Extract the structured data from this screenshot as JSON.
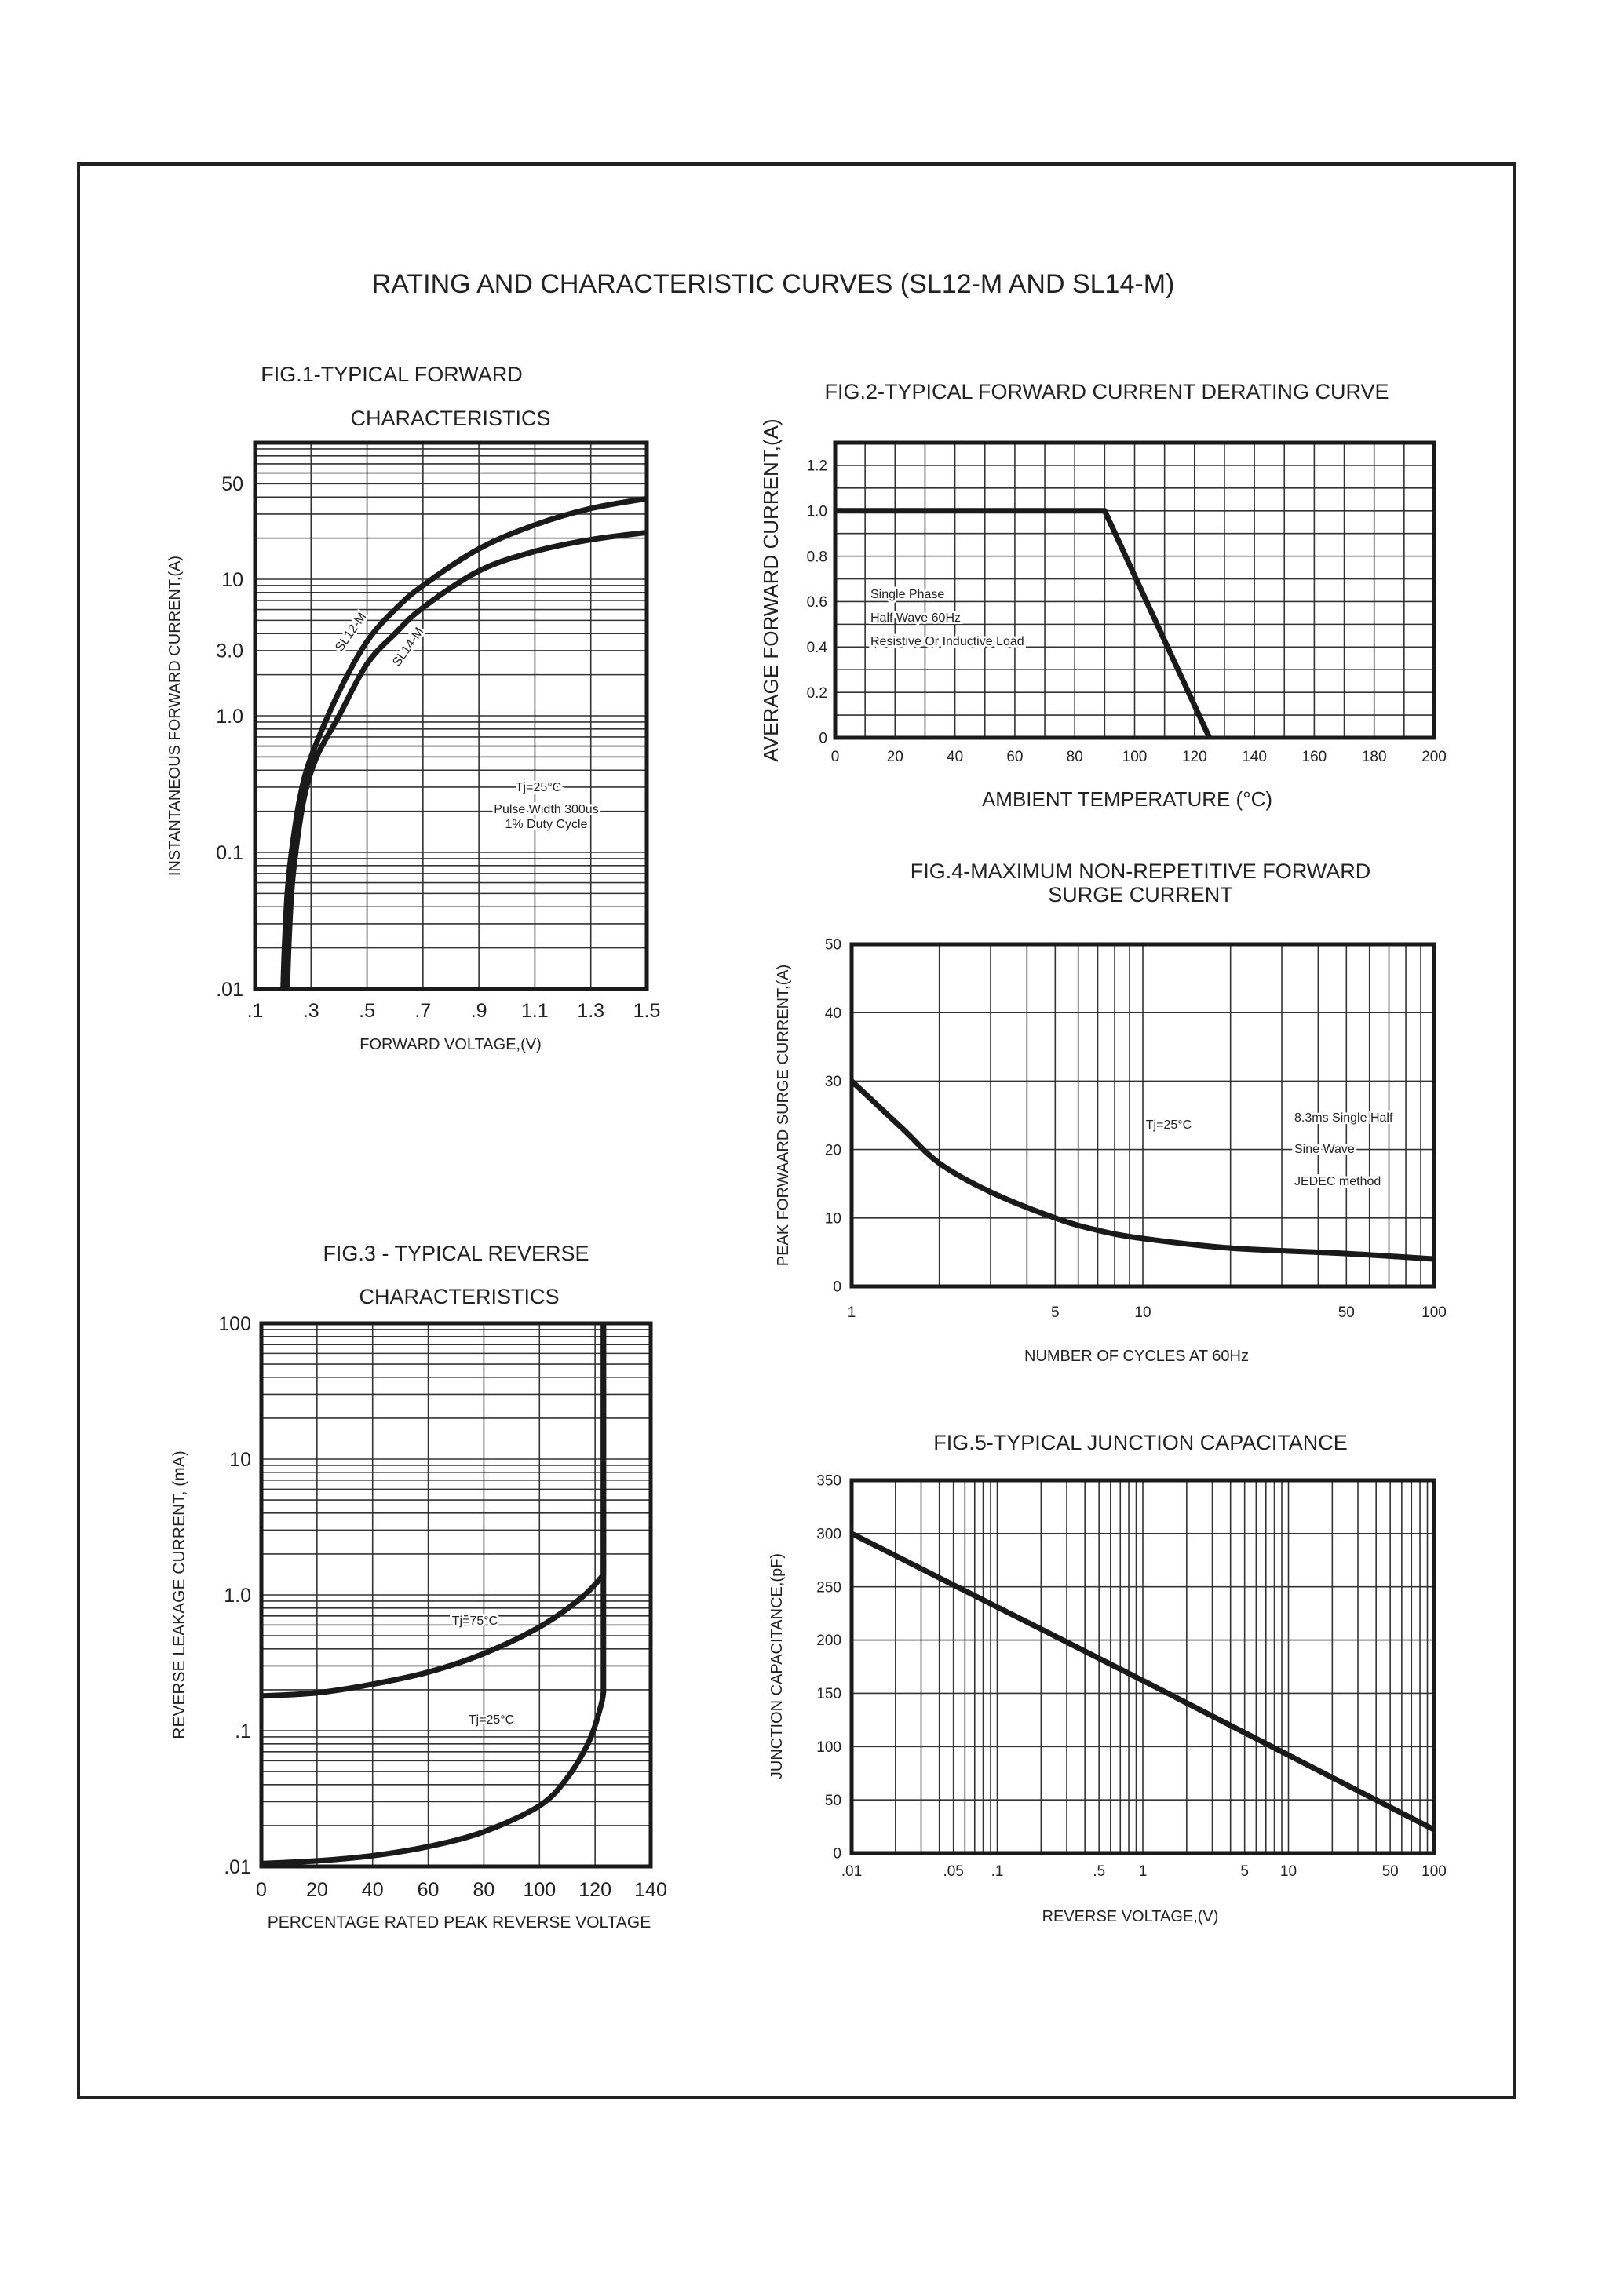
{
  "page": {
    "title": "RATING AND CHARACTERISTIC CURVES (SL12-M  AND  SL14-M)"
  },
  "chart_data": [
    {
      "type": "line",
      "title": [
        "FIG.1-TYPICAL FORWARD",
        "CHARACTERISTICS"
      ],
      "xlabel": "FORWARD VOLTAGE,(V)",
      "ylabel": "INSTANTANEOUS FORWARD CURRENT,(A)",
      "xscale": "linear",
      "yscale": "log",
      "xlim": [
        0.1,
        1.5
      ],
      "ylim": [
        0.01,
        100
      ],
      "grid": true,
      "x_grid_step": 0.2,
      "xticks": [
        {
          "value": 0.1,
          "label": ".1"
        },
        {
          "value": 0.3,
          "label": ".3"
        },
        {
          "value": 0.5,
          "label": ".5"
        },
        {
          "value": 0.7,
          "label": ".7"
        },
        {
          "value": 0.9,
          "label": ".9"
        },
        {
          "value": 1.1,
          "label": "1.1"
        },
        {
          "value": 1.3,
          "label": "1.3"
        },
        {
          "value": 1.5,
          "label": "1.5"
        }
      ],
      "yticks": [
        {
          "value": 50,
          "label": "50"
        },
        {
          "value": 10,
          "label": "10"
        },
        {
          "value": 3,
          "label": "3.0"
        },
        {
          "value": 1,
          "label": "1.0"
        },
        {
          "value": 0.1,
          "label": "0.1"
        },
        {
          "value": 0.01,
          "label": ".01"
        }
      ],
      "series": [
        {
          "name": "SL12-M",
          "points": [
            [
              0.2,
              0.01
            ],
            [
              0.205,
              0.02
            ],
            [
              0.215,
              0.05
            ],
            [
              0.23,
              0.1
            ],
            [
              0.26,
              0.25
            ],
            [
              0.3,
              0.5
            ],
            [
              0.4,
              1.5
            ],
            [
              0.5,
              3.5
            ],
            [
              0.6,
              6
            ],
            [
              0.7,
              9
            ],
            [
              0.9,
              16.7
            ],
            [
              1.1,
              25
            ],
            [
              1.3,
              33
            ],
            [
              1.5,
              39
            ]
          ]
        },
        {
          "name": "SL14-M",
          "points": [
            [
              0.215,
              0.01
            ],
            [
              0.22,
              0.02
            ],
            [
              0.23,
              0.05
            ],
            [
              0.245,
              0.1
            ],
            [
              0.275,
              0.25
            ],
            [
              0.32,
              0.5
            ],
            [
              0.4,
              1.0
            ],
            [
              0.5,
              2.4
            ],
            [
              0.6,
              4
            ],
            [
              0.7,
              6.2
            ],
            [
              0.9,
              11.5
            ],
            [
              1.1,
              16
            ],
            [
              1.3,
              19.5
            ],
            [
              1.5,
              22
            ]
          ]
        }
      ],
      "annotations": [
        "Tj=25°C",
        "Pulse Width 300us",
        "1% Duty Cycle"
      ]
    },
    {
      "type": "line",
      "title": [
        "FIG.2-TYPICAL FORWARD CURRENT DERATING CURVE"
      ],
      "xlabel": "AMBIENT TEMPERATURE (°C)",
      "ylabel": "AVERAGE FORWARD CURRENT,(A)",
      "xscale": "linear",
      "yscale": "linear",
      "xlim": [
        0,
        200
      ],
      "ylim": [
        0,
        1.3
      ],
      "grid": true,
      "x_grid_step": 10,
      "y_grid_step": 0.1,
      "xticks": [
        {
          "value": 0,
          "label": "0"
        },
        {
          "value": 20,
          "label": "20"
        },
        {
          "value": 40,
          "label": "40"
        },
        {
          "value": 60,
          "label": "60"
        },
        {
          "value": 80,
          "label": "80"
        },
        {
          "value": 100,
          "label": "100"
        },
        {
          "value": 120,
          "label": "120"
        },
        {
          "value": 140,
          "label": "140"
        },
        {
          "value": 160,
          "label": "160"
        },
        {
          "value": 180,
          "label": "180"
        },
        {
          "value": 200,
          "label": "200"
        }
      ],
      "yticks": [
        {
          "value": 0,
          "label": "0"
        },
        {
          "value": 0.2,
          "label": "0.2"
        },
        {
          "value": 0.4,
          "label": "0.4"
        },
        {
          "value": 0.6,
          "label": "0.6"
        },
        {
          "value": 0.8,
          "label": "0.8"
        },
        {
          "value": 1.0,
          "label": "1.0"
        },
        {
          "value": 1.2,
          "label": "1.2"
        }
      ],
      "series": [
        {
          "points": [
            [
              0,
              1.0
            ],
            [
              90,
              1.0
            ],
            [
              125,
              0
            ]
          ]
        }
      ],
      "annotations": [
        "Single Phase",
        "Half Wave 60Hz",
        "Resistive Or Inductive Load"
      ]
    },
    {
      "type": "line",
      "title": [
        "FIG.3 - TYPICAL REVERSE",
        "CHARACTERISTICS"
      ],
      "xlabel": "PERCENTAGE RATED PEAK REVERSE VOLTAGE",
      "ylabel": "REVERSE LEAKAGE CURRENT, (mA)",
      "xscale": "linear",
      "yscale": "log",
      "xlim": [
        0,
        140
      ],
      "ylim": [
        0.01,
        100
      ],
      "grid": true,
      "x_grid_step": 20,
      "xticks": [
        {
          "value": 0,
          "label": "0"
        },
        {
          "value": 20,
          "label": "20"
        },
        {
          "value": 40,
          "label": "40"
        },
        {
          "value": 60,
          "label": "60"
        },
        {
          "value": 80,
          "label": "80"
        },
        {
          "value": 100,
          "label": "100"
        },
        {
          "value": 120,
          "label": "120"
        },
        {
          "value": 140,
          "label": "140"
        }
      ],
      "yticks": [
        {
          "value": 100,
          "label": "100"
        },
        {
          "value": 10,
          "label": "10"
        },
        {
          "value": 1,
          "label": "1.0"
        },
        {
          "value": 0.1,
          "label": ".1"
        },
        {
          "value": 0.01,
          "label": ".01"
        }
      ],
      "series": [
        {
          "name": "Tj=75°C",
          "points": [
            [
              0,
              0.18
            ],
            [
              20,
              0.19
            ],
            [
              40,
              0.22
            ],
            [
              60,
              0.27
            ],
            [
              80,
              0.37
            ],
            [
              100,
              0.58
            ],
            [
              115,
              0.95
            ],
            [
              123,
              1.4
            ],
            [
              123,
              100
            ]
          ]
        },
        {
          "name": "Tj=25°C",
          "points": [
            [
              0,
              0.0105
            ],
            [
              20,
              0.011
            ],
            [
              40,
              0.012
            ],
            [
              60,
              0.014
            ],
            [
              80,
              0.018
            ],
            [
              100,
              0.028
            ],
            [
              110,
              0.045
            ],
            [
              118,
              0.085
            ],
            [
              122,
              0.15
            ],
            [
              123,
              0.19
            ],
            [
              123,
              100
            ]
          ]
        }
      ],
      "annotations": []
    },
    {
      "type": "line",
      "title": [
        "FIG.4-MAXIMUM NON-REPETITIVE FORWARD",
        "SURGE CURRENT"
      ],
      "xlabel": "NUMBER OF CYCLES AT 60Hz",
      "ylabel": "PEAK FORWAARD SURGE CURRENT,(A)",
      "xscale": "log",
      "yscale": "linear",
      "xlim": [
        1,
        100
      ],
      "ylim": [
        0,
        50
      ],
      "grid": true,
      "y_grid_step": 10,
      "xticks": [
        {
          "value": 1,
          "label": "1"
        },
        {
          "value": 5,
          "label": "5"
        },
        {
          "value": 10,
          "label": "10"
        },
        {
          "value": 50,
          "label": "50"
        },
        {
          "value": 100,
          "label": "100"
        }
      ],
      "yticks": [
        {
          "value": 0,
          "label": "0"
        },
        {
          "value": 10,
          "label": "10"
        },
        {
          "value": 20,
          "label": "20"
        },
        {
          "value": 30,
          "label": "30"
        },
        {
          "value": 40,
          "label": "40"
        },
        {
          "value": 50,
          "label": "50"
        }
      ],
      "series": [
        {
          "points": [
            [
              1,
              30
            ],
            [
              1.5,
              23
            ],
            [
              2,
              18
            ],
            [
              3,
              13.8
            ],
            [
              5,
              10
            ],
            [
              7,
              8.2
            ],
            [
              10,
              7
            ],
            [
              20,
              5.6
            ],
            [
              50,
              4.8
            ],
            [
              100,
              4
            ]
          ]
        }
      ],
      "annotations": [
        "Tj=25°C",
        "8.3ms Single Half",
        "Sine Wave",
        "JEDEC method"
      ]
    },
    {
      "type": "line",
      "title": [
        "FIG.5-TYPICAL JUNCTION CAPACITANCE"
      ],
      "xlabel": "REVERSE VOLTAGE,(V)",
      "ylabel": "JUNCTION CAPACITANCE,(pF)",
      "xscale": "log",
      "yscale": "linear",
      "xlim": [
        0.01,
        100
      ],
      "ylim": [
        0,
        350
      ],
      "grid": true,
      "y_grid_step": 50,
      "xticks": [
        {
          "value": 0.01,
          "label": ".01"
        },
        {
          "value": 0.05,
          "label": ".05"
        },
        {
          "value": 0.1,
          "label": ".1"
        },
        {
          "value": 0.5,
          "label": ".5"
        },
        {
          "value": 1,
          "label": "1"
        },
        {
          "value": 5,
          "label": "5"
        },
        {
          "value": 10,
          "label": "10"
        },
        {
          "value": 50,
          "label": "50"
        },
        {
          "value": 100,
          "label": "100"
        }
      ],
      "yticks": [
        {
          "value": 0,
          "label": "0"
        },
        {
          "value": 50,
          "label": "50"
        },
        {
          "value": 100,
          "label": "100"
        },
        {
          "value": 150,
          "label": "150"
        },
        {
          "value": 200,
          "label": "200"
        },
        {
          "value": 250,
          "label": "250"
        },
        {
          "value": 300,
          "label": "300"
        },
        {
          "value": 350,
          "label": "350"
        }
      ],
      "series": [
        {
          "points": [
            [
              0.01,
              300
            ],
            [
              0.1,
              231
            ],
            [
              1,
              162
            ],
            [
              10,
              92
            ],
            [
              100,
              22
            ]
          ]
        }
      ],
      "annotations": []
    }
  ]
}
